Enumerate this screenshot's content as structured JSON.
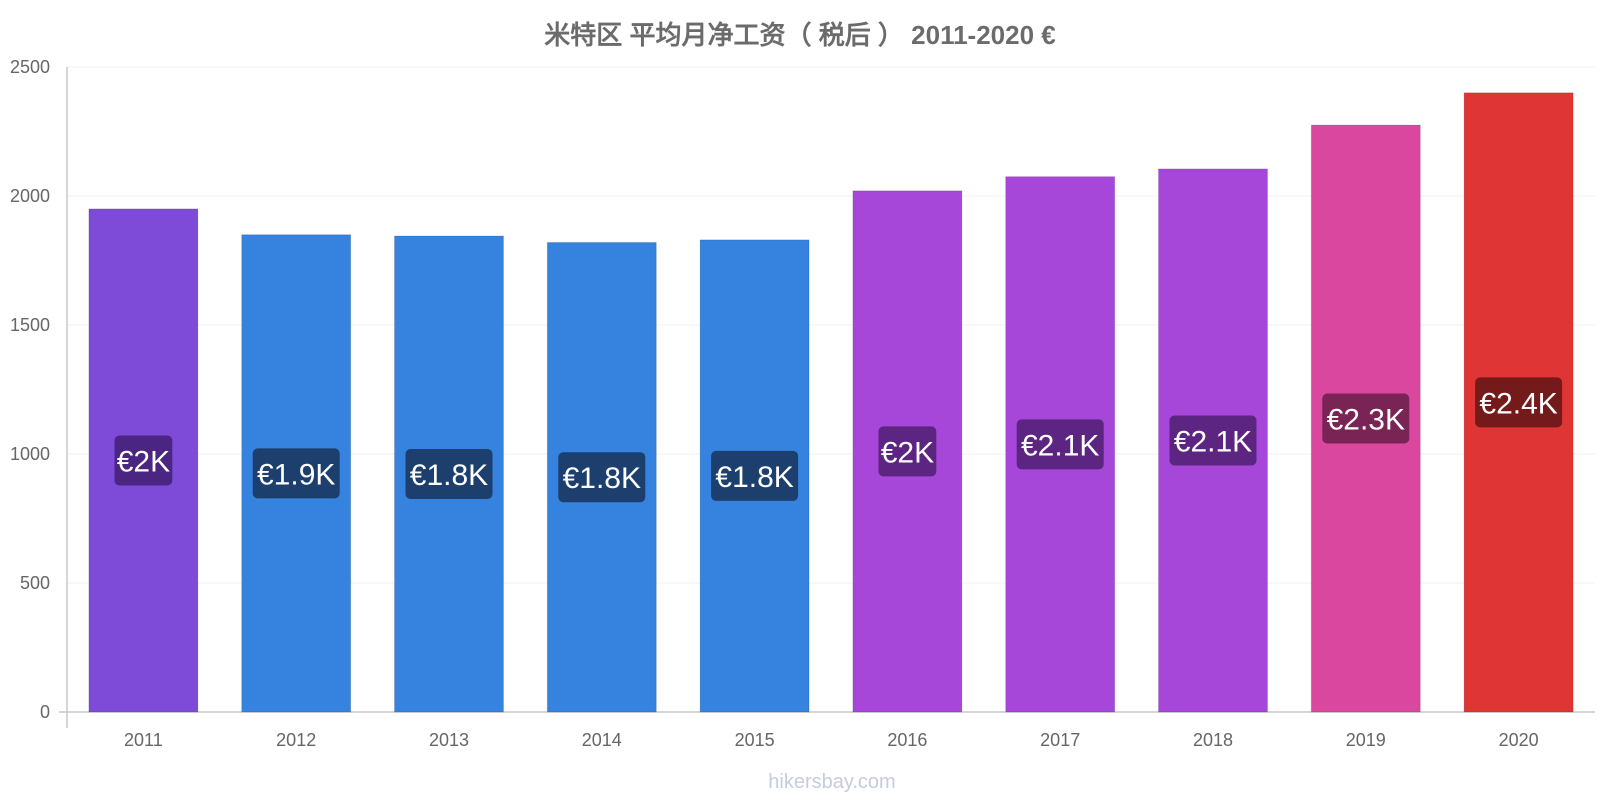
{
  "chart_data": {
    "type": "bar",
    "title": "米特区 平均月净工资（ 税后 ） 2011-2020 €",
    "categories": [
      "2011",
      "2012",
      "2013",
      "2014",
      "2015",
      "2016",
      "2017",
      "2018",
      "2019",
      "2020"
    ],
    "values": [
      1950,
      1850,
      1845,
      1820,
      1830,
      2020,
      2075,
      2105,
      2275,
      2400
    ],
    "data_labels": [
      "€2K",
      "€1.9K",
      "€1.8K",
      "€1.8K",
      "€1.8K",
      "€2K",
      "€2.1K",
      "€2.1K",
      "€2.3K",
      "€2.4K"
    ],
    "bar_colors": [
      "#7e4bd9",
      "#3583de",
      "#3583de",
      "#3583de",
      "#3583de",
      "#a647d9",
      "#a647d9",
      "#a647d9",
      "#d9489e",
      "#e03535"
    ],
    "label_bg_colors": [
      "#4a2682",
      "#1d3f6e",
      "#1d3f6e",
      "#1d3f6e",
      "#1d3f6e",
      "#5c2582",
      "#5c2582",
      "#5c2582",
      "#7a2355",
      "#751a1a"
    ],
    "yticks": [
      "0",
      "500",
      "1000",
      "1500",
      "2000",
      "2500"
    ],
    "ylim": [
      0,
      2500
    ],
    "xlabel": "",
    "ylabel": "",
    "grid": true,
    "legend": "none"
  },
  "watermark": "hikersbay.com"
}
